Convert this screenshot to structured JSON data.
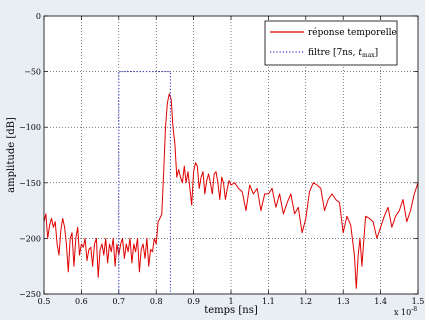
{
  "chart_data": {
    "type": "line",
    "xlabel": "temps [ns]",
    "ylabel": "amplitude [dB]",
    "x_multiplier": "x 10",
    "x_multiplier_exp": "-8",
    "xlim": [
      0.5,
      1.5
    ],
    "ylim": [
      -250,
      0
    ],
    "xticks": [
      "0.5",
      "0.6",
      "0.7",
      "0.8",
      "0.9",
      "1",
      "1.1",
      "1.2",
      "1.3",
      "1.4",
      "1.5"
    ],
    "yticks": [
      "0",
      "−50",
      "−100",
      "−150",
      "−200",
      "−250"
    ],
    "grid": true,
    "legend_position": "top-right",
    "colors": {
      "signal": "#e00000",
      "filter": "#3a3acc"
    },
    "series": [
      {
        "name": "réponse temporelle",
        "style": "solid",
        "x": [
          0.5,
          0.505,
          0.51,
          0.515,
          0.52,
          0.525,
          0.53,
          0.535,
          0.54,
          0.545,
          0.55,
          0.555,
          0.56,
          0.565,
          0.57,
          0.575,
          0.58,
          0.585,
          0.59,
          0.595,
          0.6,
          0.605,
          0.61,
          0.615,
          0.62,
          0.625,
          0.63,
          0.635,
          0.64,
          0.645,
          0.65,
          0.655,
          0.66,
          0.665,
          0.67,
          0.675,
          0.68,
          0.685,
          0.69,
          0.695,
          0.7,
          0.705,
          0.71,
          0.715,
          0.72,
          0.725,
          0.73,
          0.735,
          0.74,
          0.745,
          0.75,
          0.755,
          0.76,
          0.765,
          0.77,
          0.775,
          0.78,
          0.785,
          0.79,
          0.795,
          0.8,
          0.805,
          0.81,
          0.815,
          0.82,
          0.825,
          0.83,
          0.835,
          0.84,
          0.845,
          0.85,
          0.855,
          0.86,
          0.865,
          0.87,
          0.875,
          0.88,
          0.885,
          0.89,
          0.895,
          0.9,
          0.905,
          0.91,
          0.915,
          0.92,
          0.925,
          0.93,
          0.935,
          0.94,
          0.945,
          0.95,
          0.955,
          0.96,
          0.965,
          0.97,
          0.975,
          0.98,
          0.985,
          0.99,
          0.995,
          1.0,
          1.01,
          1.02,
          1.03,
          1.04,
          1.05,
          1.06,
          1.07,
          1.08,
          1.09,
          1.1,
          1.11,
          1.12,
          1.13,
          1.14,
          1.15,
          1.16,
          1.17,
          1.18,
          1.19,
          1.2,
          1.21,
          1.22,
          1.23,
          1.24,
          1.25,
          1.26,
          1.27,
          1.28,
          1.29,
          1.3,
          1.31,
          1.32,
          1.33,
          1.335,
          1.34,
          1.345,
          1.35,
          1.36,
          1.37,
          1.38,
          1.39,
          1.4,
          1.41,
          1.42,
          1.43,
          1.44,
          1.45,
          1.46,
          1.47,
          1.48,
          1.49,
          1.5
        ],
        "y": [
          -185,
          -178,
          -200,
          -188,
          -182,
          -190,
          -185,
          -205,
          -215,
          -193,
          -182,
          -190,
          -205,
          -230,
          -200,
          -195,
          -225,
          -200,
          -190,
          -215,
          -205,
          -208,
          -200,
          -220,
          -210,
          -208,
          -225,
          -205,
          -200,
          -235,
          -210,
          -205,
          -215,
          -200,
          -222,
          -205,
          -212,
          -200,
          -225,
          -205,
          -215,
          -205,
          -200,
          -218,
          -205,
          -212,
          -200,
          -222,
          -205,
          -212,
          -200,
          -230,
          -210,
          -205,
          -218,
          -200,
          -225,
          -210,
          -212,
          -200,
          -205,
          -185,
          -182,
          -178,
          -140,
          -100,
          -78,
          -70,
          -75,
          -100,
          -115,
          -145,
          -138,
          -145,
          -150,
          -135,
          -150,
          -140,
          -155,
          -170,
          -140,
          -132,
          -135,
          -155,
          -145,
          -140,
          -160,
          -148,
          -142,
          -150,
          -160,
          -142,
          -140,
          -150,
          -165,
          -145,
          -150,
          -165,
          -155,
          -148,
          -152,
          -150,
          -155,
          -158,
          -175,
          -152,
          -160,
          -155,
          -175,
          -160,
          -160,
          -155,
          -172,
          -160,
          -178,
          -168,
          -160,
          -178,
          -172,
          -195,
          -182,
          -158,
          -150,
          -152,
          -155,
          -175,
          -165,
          -160,
          -165,
          -168,
          -195,
          -180,
          -188,
          -215,
          -245,
          -215,
          -200,
          -225,
          -180,
          -182,
          -185,
          -200,
          -190,
          -180,
          -172,
          -190,
          -180,
          -175,
          -165,
          -185,
          -175,
          -160,
          -150
        ]
      },
      {
        "name": "filtre [7ns, t_max]",
        "style": "dotted",
        "x": [
          0.7,
          0.7,
          0.838,
          0.838
        ],
        "y": [
          -250,
          -50,
          -50,
          -250
        ]
      }
    ],
    "legend": {
      "signal_label": "réponse temporelle",
      "filter_label_main": "filtre [7ns, ",
      "filter_label_sub": "max",
      "filter_label_var": "t",
      "filter_label_close": "]"
    }
  }
}
